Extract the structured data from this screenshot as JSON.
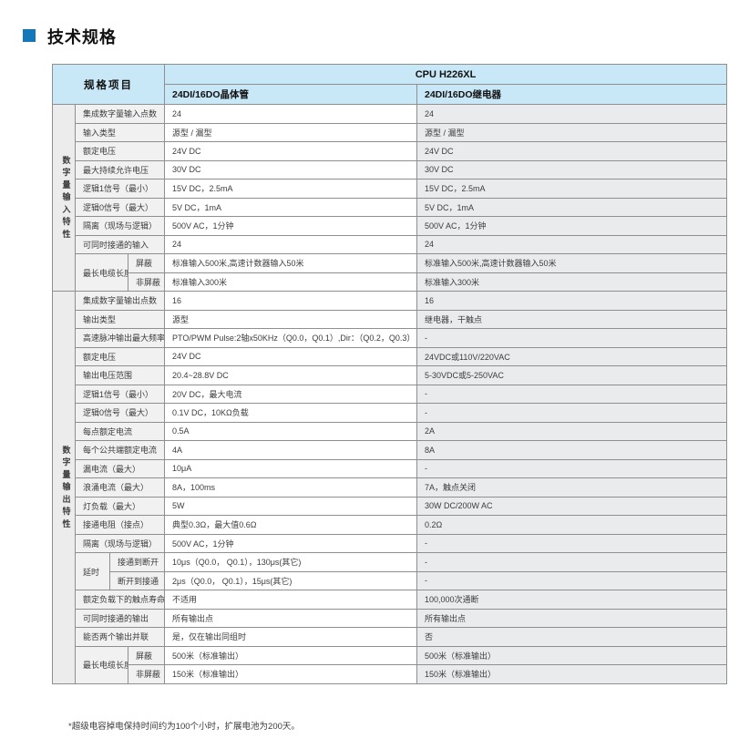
{
  "page": {
    "title": "技术规格",
    "footnote": "*超级电容掉电保持时间约为100个小时，扩展电池为200天。"
  },
  "table": {
    "corner_header": "规格项目",
    "cpu_header": "CPU H226XL",
    "col1_header": "24DI/16DO晶体管",
    "col2_header": "24DI/16DO继电器",
    "sections": [
      {
        "group": "数字量输入特性",
        "rows": [
          {
            "label": "集成数字量输入点数",
            "v1": "24",
            "v2": "24"
          },
          {
            "label": "输入类型",
            "v1": "源型 / 漏型",
            "v2": "源型 / 漏型"
          },
          {
            "label": "额定电压",
            "v1": "24V DC",
            "v2": "24V DC"
          },
          {
            "label": "最大持续允许电压",
            "v1": "30V DC",
            "v2": "30V DC"
          },
          {
            "label": "逻辑1信号（最小）",
            "v1": "15V DC，2.5mA",
            "v2": "15V DC，2.5mA"
          },
          {
            "label": "逻辑0信号（最大）",
            "v1": "5V DC，1mA",
            "v2": "5V DC，1mA"
          },
          {
            "label": "隔离（现场与逻辑）",
            "v1": "500V AC，1分钟",
            "v2": "500V AC，1分钟"
          },
          {
            "label": "可同时接通的输入",
            "v1": "24",
            "v2": "24"
          },
          {
            "main": "最长电缆长度",
            "main_cols": 2,
            "main_rows": 2,
            "sub": "屏蔽",
            "sub_cols": 1,
            "v1": "标准输入500米,高速计数器输入50米",
            "v2": "标准输入500米,高速计数器输入50米"
          },
          {
            "sub": "非屏蔽",
            "sub_cols": 1,
            "v1": "标准输入300米",
            "v2": "标准输入300米"
          }
        ]
      },
      {
        "group": "数字量输出特性",
        "rows": [
          {
            "label": "集成数字量输出点数",
            "v1": "16",
            "v2": "16"
          },
          {
            "label": "输出类型",
            "v1": "源型",
            "v2": "继电器，干触点"
          },
          {
            "label": "高速脉冲输出最大频率*",
            "v1": "PTO/PWM Pulse:2轴x50KHz（Q0.0，Q0.1）,Dir：（Q0.2，Q0.3）",
            "v2": "-"
          },
          {
            "label": "额定电压",
            "v1": "24V DC",
            "v2": "24VDC或110V/220VAC"
          },
          {
            "label": "输出电压范围",
            "v1": "20.4~28.8V DC",
            "v2": "5-30VDC或5-250VAC"
          },
          {
            "label": "逻辑1信号（最小）",
            "v1": "20V DC，最大电流",
            "v2": "-"
          },
          {
            "label": "逻辑0信号（最大）",
            "v1": "0.1V DC，10KΩ负载",
            "v2": "-"
          },
          {
            "label": "每点额定电流",
            "v1": "0.5A",
            "v2": "2A"
          },
          {
            "label": "每个公共端额定电流",
            "v1": "4A",
            "v2": "8A"
          },
          {
            "label": "漏电流（最大）",
            "v1": "10μA",
            "v2": "-"
          },
          {
            "label": "浪涌电流（最大）",
            "v1": "8A，100ms",
            "v2": "7A，触点关闭"
          },
          {
            "label": "灯负载（最大）",
            "v1": "5W",
            "v2": "30W DC/200W AC"
          },
          {
            "label": "接通电阻（接点）",
            "v1": "典型0.3Ω，最大值0.6Ω",
            "v2": "0.2Ω"
          },
          {
            "label": "隔离（现场与逻辑）",
            "v1": "500V AC，1分钟",
            "v2": "-"
          },
          {
            "main": "延时",
            "main_cols": 1,
            "main_rows": 2,
            "sub": "接通到断开",
            "sub_cols": 2,
            "v1": "10μs（Q0.0， Q0.1），130μs(其它)",
            "v2": "-"
          },
          {
            "sub": "断开到接通",
            "sub_cols": 2,
            "v1": "2μs（Q0.0， Q0.1），15μs(其它)",
            "v2": "-"
          },
          {
            "label": "额定负载下的触点寿命",
            "v1": "不适用",
            "v2": "100,000次通断"
          },
          {
            "label": "可同时接通的输出",
            "v1": "所有输出点",
            "v2": "所有输出点"
          },
          {
            "label": "能否两个输出并联",
            "v1": "是，仅在输出同组时",
            "v2": "否"
          },
          {
            "main": "最长电缆长度",
            "main_cols": 2,
            "main_rows": 2,
            "sub": "屏蔽",
            "sub_cols": 1,
            "v1": "500米（标准输出）",
            "v2": "500米（标准输出）"
          },
          {
            "sub": "非屏蔽",
            "sub_cols": 1,
            "v1": "150米（标准输出）",
            "v2": "150米（标准输出）"
          }
        ]
      }
    ]
  }
}
